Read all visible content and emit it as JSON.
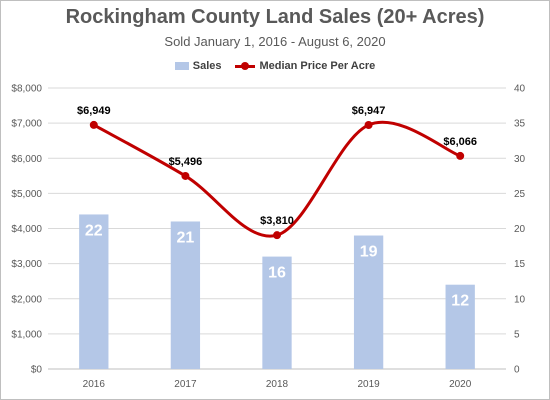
{
  "chart_data": {
    "type": "bar",
    "title": "Rockingham County Land Sales (20+ Acres)",
    "subtitle": "Sold January 1, 2016 - August 6, 2020",
    "categories": [
      "2016",
      "2017",
      "2018",
      "2019",
      "2020"
    ],
    "series": [
      {
        "name": "Sales",
        "kind": "bar",
        "axis": "right",
        "values": [
          22,
          21,
          16,
          19,
          12
        ],
        "color": "#b4c7e7"
      },
      {
        "name": "Median Price Per Acre",
        "kind": "line",
        "smooth": true,
        "markers": true,
        "axis": "left",
        "values": [
          6949,
          5496,
          3810,
          6947,
          6066
        ],
        "labels": [
          "$6,949",
          "$5,496",
          "$3,810",
          "$6,947",
          "$6,066"
        ],
        "color": "#c00000"
      }
    ],
    "y_left": {
      "ylim": [
        0,
        8000
      ],
      "ticks": [
        "$0",
        "$1,000",
        "$2,000",
        "$3,000",
        "$4,000",
        "$5,000",
        "$6,000",
        "$7,000",
        "$8,000"
      ]
    },
    "y_right": {
      "ylim": [
        0,
        40
      ],
      "ticks": [
        "0",
        "5",
        "10",
        "15",
        "20",
        "25",
        "30",
        "35",
        "40"
      ]
    },
    "grid": true,
    "legend_position": "top"
  }
}
